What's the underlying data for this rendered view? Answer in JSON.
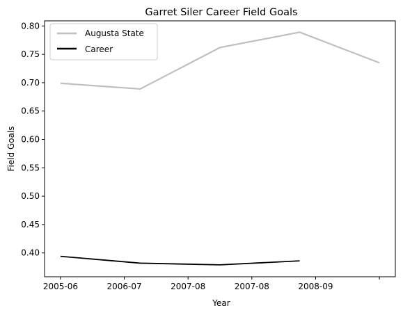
{
  "chart_data": {
    "type": "line",
    "title": "Garret Siler Career Field Goals",
    "xlabel": "Year",
    "ylabel": "Field Goals",
    "categories": [
      "2005-06",
      "2006-07",
      "2007-08",
      "2007-08",
      "2008-09",
      ""
    ],
    "ylim": [
      0.358,
      0.809
    ],
    "yticks": [
      0.4,
      0.45,
      0.5,
      0.55,
      0.6,
      0.65,
      0.7,
      0.75,
      0.8
    ],
    "grid": false,
    "legend_position": "top-left",
    "series": [
      {
        "name": "Augusta State",
        "color": "#bfbfbf",
        "x": [
          0,
          1.25,
          2.5,
          3.75,
          5.0
        ],
        "values": [
          0.699,
          0.689,
          0.762,
          0.789,
          0.735
        ]
      },
      {
        "name": "Career",
        "color": "#000000",
        "x": [
          0,
          1.25,
          2.5,
          3.75
        ],
        "values": [
          0.394,
          0.382,
          0.379,
          0.386
        ]
      }
    ]
  }
}
